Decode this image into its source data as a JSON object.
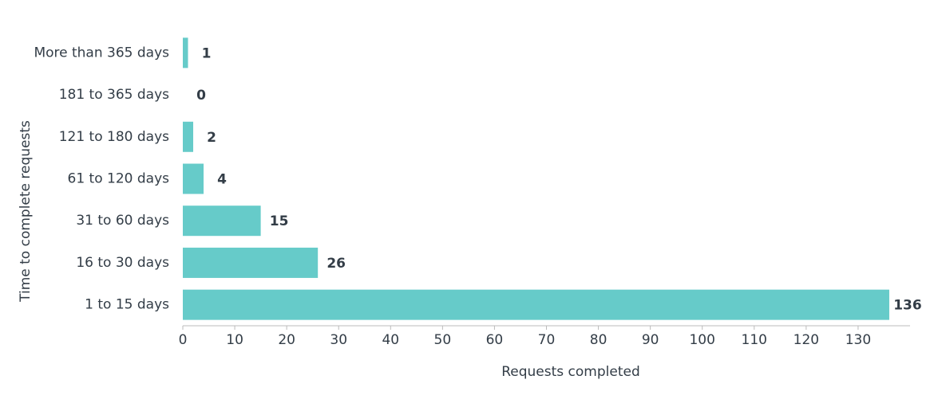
{
  "chart_data": {
    "type": "bar",
    "orientation": "horizontal",
    "xlabel": "Requests completed",
    "ylabel": "Time to complete requests",
    "categories": [
      "More than 365 days",
      "181 to 365 days",
      "121 to 180 days",
      "61 to 120 days",
      "31 to 60 days",
      "16 to 30 days",
      "1 to 15 days"
    ],
    "values": [
      1,
      0,
      2,
      4,
      15,
      26,
      136
    ],
    "color": "#66cbc9",
    "xlim": [
      0,
      140
    ],
    "xticks": [
      0,
      10,
      20,
      30,
      40,
      50,
      60,
      70,
      80,
      90,
      100,
      110,
      120,
      130
    ]
  }
}
